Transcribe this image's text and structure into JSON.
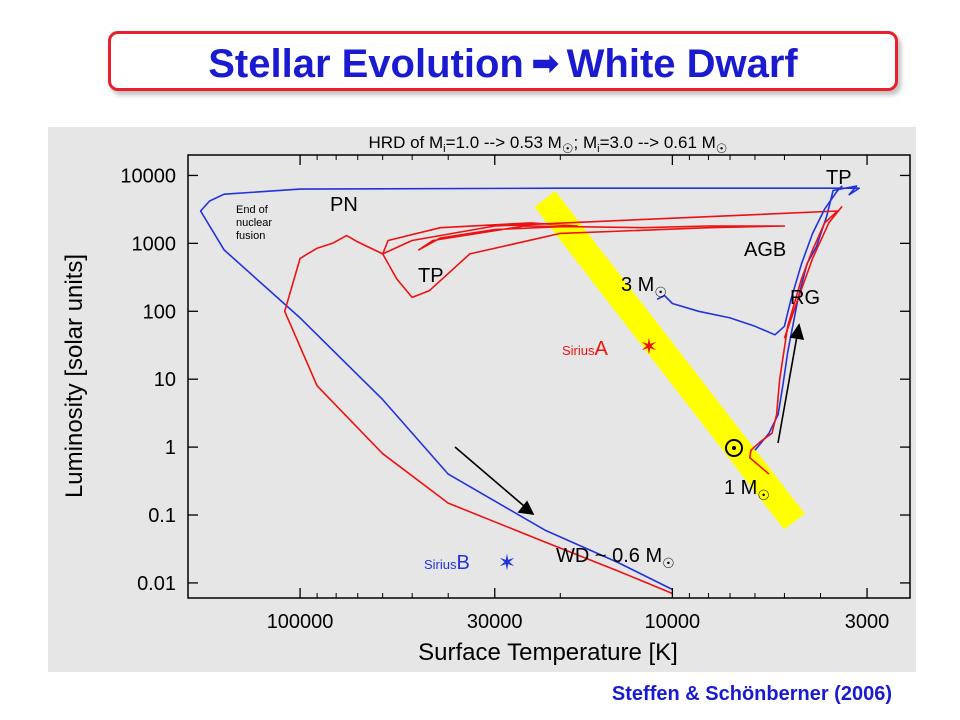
{
  "slide": {
    "title_left": "Stellar Evolution",
    "title_arrow": "➡",
    "title_right": "White Dwarf",
    "citation": "Steffen & Schönberner (2006)"
  },
  "chart_data": {
    "type": "line",
    "title": "HRD of Mi=1.0 --> 0.53 M☉; Mi=3.0 --> 0.61 M☉",
    "title_parts": {
      "a": "HRD of M",
      "sub_i": "i",
      "b": "=1.0 --> 0.53 M",
      "c": "; M",
      "d": "=3.0 --> 0.61 M",
      "sun": "☉"
    },
    "xlabel": "Surface Temperature [K]",
    "ylabel": "Luminosity [solar units]",
    "x_scale": "log",
    "x_reversed": true,
    "y_scale": "log",
    "xlim": [
      200000,
      2300
    ],
    "ylim": [
      0.006,
      20000
    ],
    "xticks": [
      100000,
      30000,
      10000,
      3000
    ],
    "xtick_labels": [
      "100000",
      "30000",
      "10000",
      "3000"
    ],
    "yticks": [
      10000,
      1000,
      100,
      10,
      1,
      0.1,
      0.01
    ],
    "ytick_labels": [
      "10000",
      "1000",
      "100",
      "10",
      "1",
      "0.1",
      "0.01"
    ],
    "grid": false,
    "band_color": "#ffff00",
    "series": [
      {
        "color": "#2233dd",
        "points": [
          [
            6000,
            0.9
          ],
          [
            5500,
            1.6
          ],
          [
            5200,
            3
          ],
          [
            5050,
            8
          ],
          [
            4900,
            25
          ],
          [
            4600,
            150
          ],
          [
            4350,
            500
          ],
          [
            4100,
            900
          ],
          [
            3850,
            2500
          ],
          [
            3700,
            6000
          ],
          [
            3200,
            7000
          ],
          [
            3350,
            5200
          ],
          [
            3150,
            6500
          ],
          [
            20000,
            6500
          ],
          [
            100000,
            6300
          ],
          [
            160000,
            5300
          ],
          [
            175000,
            4200
          ],
          [
            185000,
            3000
          ],
          [
            160000,
            800
          ],
          [
            100000,
            80
          ],
          [
            60000,
            5
          ],
          [
            40000,
            0.4
          ],
          [
            22000,
            0.06
          ],
          [
            14000,
            0.02
          ],
          [
            10000,
            0.008
          ]
        ]
      },
      {
        "color": "#ee1111",
        "points": [
          [
            5500,
            0.4
          ],
          [
            6200,
            0.7
          ],
          [
            6150,
            0.9
          ],
          [
            5800,
            1.2
          ],
          [
            5400,
            1.6
          ],
          [
            5250,
            3
          ],
          [
            5150,
            10
          ],
          [
            4900,
            60
          ],
          [
            4500,
            300
          ],
          [
            4200,
            800
          ],
          [
            3900,
            2000
          ],
          [
            3600,
            3000
          ],
          [
            30000,
            1800
          ],
          [
            50000,
            1100
          ],
          [
            60000,
            700
          ],
          [
            58000,
            1100
          ],
          [
            42000,
            1700
          ],
          [
            24000,
            2000
          ],
          [
            18000,
            1800
          ],
          [
            30000,
            1600
          ],
          [
            42000,
            1200
          ],
          [
            48000,
            800
          ],
          [
            44000,
            1100
          ],
          [
            25000,
            1800
          ],
          [
            12000,
            1700
          ],
          [
            8000,
            1800
          ],
          [
            5000,
            1800
          ],
          [
            8000,
            1700
          ],
          [
            20000,
            1400
          ],
          [
            35000,
            700
          ],
          [
            45000,
            200
          ],
          [
            50000,
            160
          ],
          [
            55000,
            300
          ],
          [
            60000,
            700
          ],
          [
            70000,
            1050
          ],
          [
            75000,
            1300
          ],
          [
            82000,
            1000
          ],
          [
            90000,
            850
          ],
          [
            100000,
            600
          ],
          [
            110000,
            100
          ],
          [
            90000,
            8
          ],
          [
            60000,
            0.8
          ],
          [
            40000,
            0.15
          ],
          [
            22000,
            0.04
          ],
          [
            14000,
            0.015
          ],
          [
            10000,
            0.007
          ]
        ]
      },
      {
        "color": "#2233dd",
        "points": [
          [
            11000,
            150
          ],
          [
            10500,
            170
          ],
          [
            10000,
            130
          ],
          [
            8500,
            100
          ],
          [
            7000,
            80
          ],
          [
            6000,
            60
          ],
          [
            5300,
            45
          ],
          [
            5000,
            60
          ],
          [
            4800,
            150
          ],
          [
            4500,
            500
          ],
          [
            4200,
            1400
          ],
          [
            3900,
            3200
          ],
          [
            3600,
            6000
          ],
          [
            3500,
            7000
          ]
        ]
      },
      {
        "color": "#ee1111",
        "points": [
          [
            5000,
            40
          ],
          [
            4600,
            150
          ],
          [
            4200,
            600
          ],
          [
            3800,
            2000
          ],
          [
            3500,
            3500
          ]
        ]
      }
    ],
    "annotations": {
      "tp_top": "TP",
      "pn": "PN",
      "end_nuclear": [
        "End of",
        "nuclear",
        "fusion"
      ],
      "tp_mid": "TP",
      "agb": "AGB",
      "rg": "RG",
      "m3": "3 M",
      "m1": "1 M",
      "sun": "☉",
      "wd": "WD ~ 0.6 M",
      "sirius_a_name": "Sirius",
      "sirius_a_letter": "A",
      "sirius_b_name": "Sirius",
      "sirius_b_letter": "B",
      "star_glyph": "✶"
    },
    "stars": [
      {
        "name": "Sirius A",
        "temperature": 9900,
        "luminosity": 25,
        "color": "#ee1111"
      },
      {
        "name": "Sirius B",
        "temperature": 25000,
        "luminosity": 0.026,
        "color": "#2233dd"
      },
      {
        "name": "Sun",
        "temperature": 5800,
        "luminosity": 1,
        "color": "#000000"
      }
    ]
  }
}
